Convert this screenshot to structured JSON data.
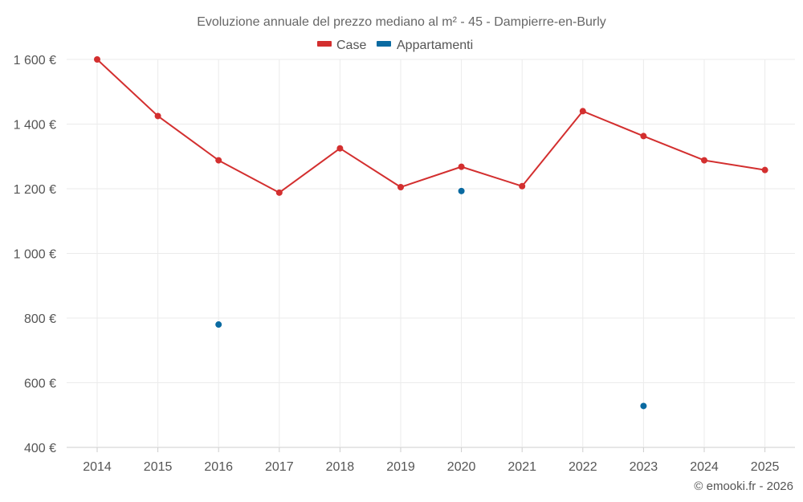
{
  "chart_data": {
    "type": "line",
    "title": "Evoluzione annuale del prezzo mediano al m² - 45 - Dampierre-en-Burly",
    "categories": [
      "2014",
      "2015",
      "2016",
      "2017",
      "2018",
      "2019",
      "2020",
      "2021",
      "2022",
      "2023",
      "2024",
      "2025"
    ],
    "series": [
      {
        "name": "Case",
        "color": "#d32f2f",
        "mode": "lines+markers",
        "values": [
          1600,
          1425,
          1288,
          1188,
          1325,
          1205,
          1268,
          1208,
          1440,
          1363,
          1288,
          1258
        ]
      },
      {
        "name": "Appartamenti",
        "color": "#0a6aa1",
        "mode": "markers",
        "values": [
          null,
          null,
          780,
          null,
          null,
          null,
          1193,
          null,
          null,
          528,
          null,
          null
        ]
      }
    ],
    "y_axis": {
      "min": 400,
      "max": 1600,
      "ticks": [
        400,
        600,
        800,
        1000,
        1200,
        1400,
        1600
      ],
      "tick_labels": [
        "400 €",
        "600 €",
        "800 €",
        "1 000 €",
        "1 200 €",
        "1 400 €",
        "1 600 €"
      ]
    },
    "grid": true,
    "legend_position": "top-center",
    "credit": "© emooki.fr - 2026"
  }
}
